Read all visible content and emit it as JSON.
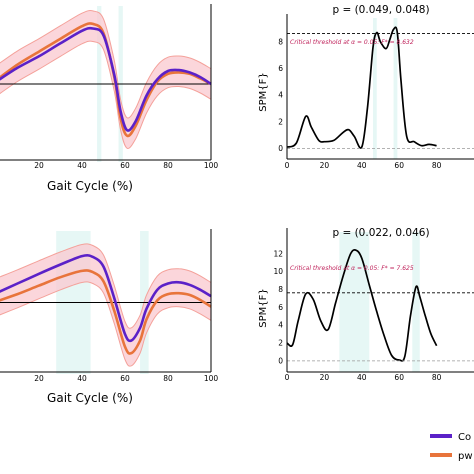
{
  "colors": {
    "control": "#5b21c8",
    "pwd": "#e8743b",
    "band_fill": "#f9c8cf",
    "band_edge": "#f4a19a",
    "highlight": "#e6f7f5",
    "threshold_label": "#c0245c"
  },
  "chart_data": [
    {
      "type": "line",
      "xlabel": "Gait Cycle (%)",
      "xlim": [
        0,
        100
      ],
      "x_ticks": [
        "20",
        "40",
        "60",
        "80",
        "100"
      ],
      "ylim": [
        -1.6,
        1.6
      ],
      "zero_line": 0,
      "shaded_regions": [
        [
          47,
          49
        ],
        [
          57,
          59
        ]
      ],
      "x": [
        0,
        10,
        20,
        30,
        40,
        45,
        50,
        55,
        58,
        61,
        65,
        70,
        75,
        80,
        85,
        90,
        95,
        100
      ],
      "series": [
        {
          "name": "Co",
          "values": [
            0.05,
            0.35,
            0.6,
            0.88,
            1.15,
            1.2,
            1.05,
            0.2,
            -0.6,
            -1.0,
            -0.8,
            -0.25,
            0.1,
            0.28,
            0.3,
            0.25,
            0.15,
            0.0
          ]
        },
        {
          "name": "pw",
          "values": [
            0.08,
            0.42,
            0.7,
            0.98,
            1.25,
            1.3,
            1.1,
            0.15,
            -0.75,
            -1.12,
            -0.9,
            -0.35,
            0.05,
            0.22,
            0.25,
            0.22,
            0.12,
            0.0
          ]
        }
      ],
      "band_halfwidth": 0.33
    },
    {
      "type": "line",
      "title": "p = (0.049, 0.048)",
      "ylabel": "SPM{F}",
      "xlim": [
        0,
        100
      ],
      "x_ticks": [
        "0",
        "20",
        "40",
        "60",
        "80"
      ],
      "ylim": [
        -0.5,
        9.5
      ],
      "y_ticks": [
        0,
        2,
        4,
        6,
        8
      ],
      "threshold": 8.632,
      "threshold_label": "Critical threshold at α = 0.05: F* = 8.632",
      "shaded_regions": [
        [
          46,
          48
        ],
        [
          57,
          59
        ]
      ],
      "x": [
        0,
        5,
        10,
        13,
        17,
        20,
        25,
        30,
        33,
        36,
        40,
        43,
        46,
        48,
        50,
        53,
        55,
        57,
        59,
        61,
        64,
        68,
        72,
        76,
        80
      ],
      "values": [
        0.1,
        0.4,
        2.4,
        1.6,
        0.6,
        0.5,
        0.6,
        1.2,
        1.4,
        0.9,
        0.1,
        3.0,
        7.6,
        8.7,
        8.0,
        7.5,
        8.2,
        8.95,
        8.7,
        5.0,
        0.9,
        0.5,
        0.2,
        0.3,
        0.2
      ]
    },
    {
      "type": "line",
      "xlabel": "Gait Cycle (%)",
      "xlim": [
        0,
        100
      ],
      "x_ticks": [
        "20",
        "40",
        "60",
        "80",
        "100"
      ],
      "ylim": [
        -1.6,
        1.6
      ],
      "zero_line": 0,
      "shaded_regions": [
        [
          28,
          44
        ],
        [
          67,
          71
        ]
      ],
      "x": [
        0,
        10,
        20,
        30,
        40,
        45,
        50,
        55,
        60,
        63,
        67,
        70,
        75,
        80,
        85,
        90,
        95,
        100
      ],
      "series": [
        {
          "name": "Co",
          "values": [
            0.22,
            0.45,
            0.68,
            0.9,
            1.1,
            1.08,
            0.85,
            0.1,
            -0.75,
            -0.9,
            -0.6,
            -0.15,
            0.3,
            0.45,
            0.48,
            0.42,
            0.3,
            0.15
          ]
        },
        {
          "name": "pw",
          "values": [
            0.02,
            0.2,
            0.4,
            0.6,
            0.75,
            0.72,
            0.5,
            -0.2,
            -1.05,
            -1.2,
            -0.9,
            -0.4,
            0.05,
            0.2,
            0.22,
            0.18,
            0.06,
            -0.1
          ]
        }
      ],
      "band_halfwidth": 0.45
    },
    {
      "type": "line",
      "title": "p = (0.022, 0.046)",
      "ylabel": "SPM{F}",
      "xlim": [
        0,
        100
      ],
      "x_ticks": [
        "0",
        "20",
        "40",
        "60",
        "80"
      ],
      "ylim": [
        -0.8,
        14
      ],
      "y_ticks": [
        0,
        2,
        4,
        6,
        8,
        10,
        12
      ],
      "threshold": 7.625,
      "threshold_label": "Critical threshold at α = 0.05: F* = 7.625",
      "shaded_regions": [
        [
          28,
          44
        ],
        [
          67,
          71
        ]
      ],
      "x": [
        0,
        3,
        6,
        10,
        14,
        18,
        22,
        26,
        30,
        34,
        37,
        40,
        44,
        48,
        52,
        56,
        60,
        63,
        66,
        69,
        71,
        74,
        77,
        80
      ],
      "values": [
        2.0,
        1.8,
        4.5,
        7.5,
        6.9,
        4.5,
        3.5,
        6.5,
        9.5,
        12.0,
        12.4,
        11.5,
        8.5,
        5.5,
        2.8,
        0.6,
        0.1,
        0.5,
        5.0,
        8.3,
        7.2,
        5.0,
        3.0,
        1.7
      ]
    }
  ],
  "legend": {
    "items": [
      {
        "label": "Co",
        "color_key": "control"
      },
      {
        "label": "pw",
        "color_key": "pwd"
      }
    ]
  }
}
